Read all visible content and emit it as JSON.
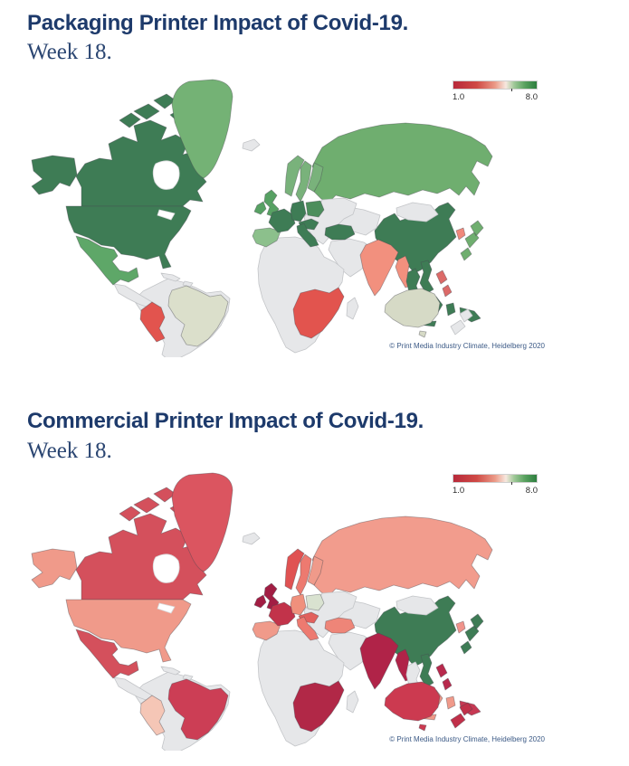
{
  "page": {
    "background": "#ffffff",
    "title_color": "#1d3a6b",
    "subtitle_color": "#2b4672",
    "no_data_color": "#e6e7e9",
    "water_color": "#ffffff"
  },
  "chart_data": [
    {
      "type": "choropleth",
      "title": "Packaging Printer Impact of Covid-19.",
      "subtitle": "Week 18.",
      "copyright": "© Print Media Industry Climate, Heidelberg 2020",
      "legend": {
        "min": 1.0,
        "max": 8.0,
        "min_label": "1.0",
        "max_label": "8.0",
        "tick_pct": 70,
        "gradient": [
          {
            "color": "#b8293a",
            "pos": 0
          },
          {
            "color": "#cf4a45",
            "pos": 28
          },
          {
            "color": "#eb9a87",
            "pos": 50
          },
          {
            "color": "#f7e8df",
            "pos": 63
          },
          {
            "color": "#9fc897",
            "pos": 73
          },
          {
            "color": "#58a15f",
            "pos": 86
          },
          {
            "color": "#2d7e3f",
            "pos": 100
          }
        ]
      },
      "countries": {
        "canada": {
          "name": "Canada",
          "value": 7.5,
          "color": "#3e7c55"
        },
        "alaska": {
          "name": "USA (Alaska)",
          "value": 7.5,
          "color": "#3e7c55"
        },
        "usa": {
          "name": "USA",
          "value": 7.5,
          "color": "#3e7c55"
        },
        "greenland": {
          "name": "Greenland",
          "value": 7.0,
          "color": "#74b275"
        },
        "mexico": {
          "name": "Mexico",
          "value": 7.2,
          "color": "#5ea768"
        },
        "peru": {
          "name": "Peru",
          "value": 2.5,
          "color": "#e2544e"
        },
        "brazil": {
          "name": "Brazil",
          "value": 6.3,
          "color": "#dbdfcb"
        },
        "southernAfrica": {
          "name": "Southern Africa",
          "value": 2.5,
          "color": "#e2544e"
        },
        "uk": {
          "name": "United Kingdom",
          "value": 7.2,
          "color": "#57a163"
        },
        "ireland": {
          "name": "Ireland",
          "value": 7.2,
          "color": "#57a163"
        },
        "norway": {
          "name": "Norway",
          "value": 7.0,
          "color": "#79b27b"
        },
        "sweden": {
          "name": "Sweden",
          "value": 7.0,
          "color": "#79b27b"
        },
        "finland": {
          "name": "Finland",
          "value": 7.0,
          "color": "#79b27b"
        },
        "iberia": {
          "name": "Spain & Portugal",
          "value": 6.8,
          "color": "#8cc08c"
        },
        "france": {
          "name": "France",
          "value": 7.5,
          "color": "#3e7c55"
        },
        "germany": {
          "name": "Germany",
          "value": 7.5,
          "color": "#3e7c55"
        },
        "poland": {
          "name": "Poland",
          "value": 7.3,
          "color": "#4c8e5c"
        },
        "alpine": {
          "name": "Switzerland & Austria",
          "value": 7.5,
          "color": "#3e7c55"
        },
        "italy": {
          "name": "Italy",
          "value": 7.5,
          "color": "#3e7c55"
        },
        "turkey": {
          "name": "Turkey",
          "value": 7.5,
          "color": "#3e7c55"
        },
        "russia": {
          "name": "Russia",
          "value": 7.0,
          "color": "#6fae6f"
        },
        "china": {
          "name": "China",
          "value": 7.5,
          "color": "#3e7c55"
        },
        "india": {
          "name": "India",
          "value": 4.0,
          "color": "#f2907e"
        },
        "myanmar": {
          "name": "Myanmar",
          "value": 4.0,
          "color": "#f2907e"
        },
        "skorea": {
          "name": "South Korea",
          "value": 4.2,
          "color": "#f0897b"
        },
        "japan": {
          "name": "Japan",
          "value": 7.0,
          "color": "#6fae6f"
        },
        "thailand": {
          "name": "Thailand",
          "value": 7.5,
          "color": "#3e7c55"
        },
        "vietnam": {
          "name": "Vietnam",
          "value": 7.5,
          "color": "#3e7c55"
        },
        "malaysia": {
          "name": "Malaysia",
          "value": 7.5,
          "color": "#3e7c55"
        },
        "indonesia": {
          "name": "Indonesia",
          "value": 7.5,
          "color": "#3e7c55"
        },
        "png": {
          "name": "Papua New Guinea",
          "value": 7.5,
          "color": "#3e7c55"
        },
        "philippines": {
          "name": "Philippines",
          "value": 3.5,
          "color": "#dc6a68"
        },
        "australia": {
          "name": "Australia",
          "value": 6.2,
          "color": "#d6dac6"
        }
      }
    },
    {
      "type": "choropleth",
      "title": "Commercial Printer Impact of Covid-19.",
      "subtitle": "Week 18.",
      "copyright": "© Print Media Industry Climate, Heidelberg 2020",
      "legend": {
        "min": 1.0,
        "max": 8.0,
        "min_label": "1.0",
        "max_label": "8.0",
        "tick_pct": 70,
        "gradient": [
          {
            "color": "#b8293a",
            "pos": 0
          },
          {
            "color": "#cf4a45",
            "pos": 28
          },
          {
            "color": "#eb9a87",
            "pos": 50
          },
          {
            "color": "#f7e8df",
            "pos": 63
          },
          {
            "color": "#9fc897",
            "pos": 73
          },
          {
            "color": "#58a15f",
            "pos": 86
          },
          {
            "color": "#2d7e3f",
            "pos": 100
          }
        ]
      },
      "countries": {
        "canada": {
          "name": "Canada",
          "value": 2.5,
          "color": "#d4505c"
        },
        "alaska": {
          "name": "USA (Alaska)",
          "value": 3.5,
          "color": "#f09a8a"
        },
        "usa": {
          "name": "USA",
          "value": 3.5,
          "color": "#f09a8a"
        },
        "greenland": {
          "name": "Greenland",
          "value": 2.5,
          "color": "#db5560"
        },
        "mexico": {
          "name": "Mexico",
          "value": 2.4,
          "color": "#d4505c"
        },
        "peru": {
          "name": "Peru",
          "value": 5.0,
          "color": "#f5c6b6"
        },
        "brazil": {
          "name": "Brazil",
          "value": 2.2,
          "color": "#cc3e55"
        },
        "southernAfrica": {
          "name": "Southern Africa",
          "value": 1.8,
          "color": "#b12847"
        },
        "uk": {
          "name": "United Kingdom",
          "value": 1.3,
          "color": "#a21d43"
        },
        "ireland": {
          "name": "Ireland",
          "value": 1.3,
          "color": "#a21d43"
        },
        "norway": {
          "name": "Norway",
          "value": 2.8,
          "color": "#e05252"
        },
        "sweden": {
          "name": "Sweden",
          "value": 3.2,
          "color": "#ed7a70"
        },
        "finland": {
          "name": "Finland",
          "value": 3.5,
          "color": "#f09a8a"
        },
        "iberia": {
          "name": "Spain & Portugal",
          "value": 3.5,
          "color": "#f09a8a"
        },
        "france": {
          "name": "France",
          "value": 2.0,
          "color": "#c2334a"
        },
        "germany": {
          "name": "Germany",
          "value": 3.8,
          "color": "#f0907c"
        },
        "poland": {
          "name": "Poland",
          "value": 6.2,
          "color": "#d9e2d0"
        },
        "alpine": {
          "name": "Switzerland & Austria",
          "value": 3.0,
          "color": "#e2605c"
        },
        "italy": {
          "name": "Italy",
          "value": 3.2,
          "color": "#ed7a70"
        },
        "turkey": {
          "name": "Turkey",
          "value": 3.6,
          "color": "#ee8578"
        },
        "russia": {
          "name": "Russia",
          "value": 3.5,
          "color": "#f29c8d"
        },
        "china": {
          "name": "China",
          "value": 7.5,
          "color": "#3e7c55"
        },
        "india": {
          "name": "India",
          "value": 1.5,
          "color": "#b02348"
        },
        "myanmar": {
          "name": "Myanmar",
          "value": 1.5,
          "color": "#b02348"
        },
        "skorea": {
          "name": "South Korea",
          "value": 4.0,
          "color": "#f0938b"
        },
        "japan": {
          "name": "Japan",
          "value": 7.5,
          "color": "#3e7c55"
        },
        "vietnam": {
          "name": "Vietnam",
          "value": 7.5,
          "color": "#3e7c55"
        },
        "malaysia": {
          "name": "Malaysia",
          "value": 3.5,
          "color": "#f09a8a"
        },
        "indonesia": {
          "name": "Indonesia",
          "value": 3.5,
          "color": "#f09a8a"
        },
        "png": {
          "name": "Papua New Guinea",
          "value": 2.2,
          "color": "#c73853"
        },
        "philippines": {
          "name": "Philippines",
          "value": 1.8,
          "color": "#b8294c"
        },
        "australia": {
          "name": "Australia",
          "value": 2.2,
          "color": "#cc3a50"
        },
        "nz": {
          "name": "New Zealand",
          "value": 2.0,
          "color": "#c13049"
        }
      }
    }
  ]
}
